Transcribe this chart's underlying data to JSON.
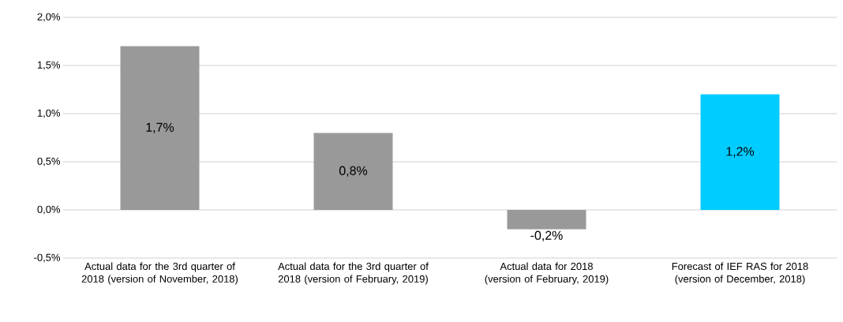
{
  "chart_data": {
    "type": "bar",
    "categories": [
      "Actual data for the 3rd quarter of 2018 (version of November, 2018)",
      "Actual data for the 3rd quarter of 2018 (version of February, 2019)",
      "Actual data for 2018 (version of February, 2019)",
      "Forecast of IEF RAS for 2018 (version of December, 2018)"
    ],
    "values": [
      1.7,
      0.8,
      -0.2,
      1.2
    ],
    "colors": [
      "#999999",
      "#999999",
      "#999999",
      "#00ccff"
    ],
    "value_labels": [
      "1,7%",
      "0,8%",
      "-0,2%",
      "1,2%"
    ],
    "ylim": [
      -0.5,
      2.0
    ],
    "yticks": [
      {
        "value": -0.5,
        "label": "-0,5%"
      },
      {
        "value": 0.0,
        "label": "0,0%"
      },
      {
        "value": 0.5,
        "label": "0,5%"
      },
      {
        "value": 1.0,
        "label": "1,0%"
      },
      {
        "value": 1.5,
        "label": "1,5%"
      },
      {
        "value": 2.0,
        "label": "2,0%"
      }
    ],
    "grid": "y"
  }
}
